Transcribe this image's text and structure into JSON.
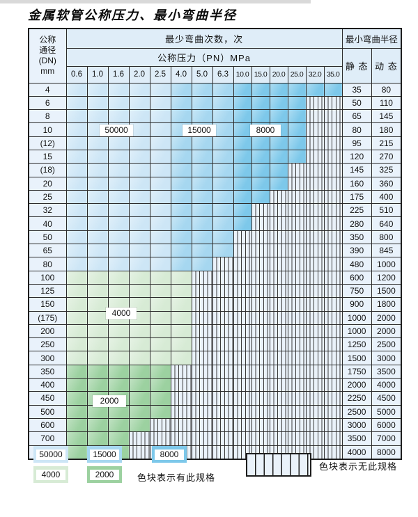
{
  "title": "金属软管公称压力、最小弯曲半径",
  "header": {
    "dn_lines": [
      "公称",
      "通径",
      "(DN)",
      "mm"
    ],
    "cycles": "最少弯曲次数，次",
    "pressure": "公称压力（PN）MPa",
    "pressure_values": [
      "0.6",
      "1.0",
      "1.6",
      "2.0",
      "2.5",
      "4.0",
      "5.0",
      "6.3",
      "10.0",
      "15.0",
      "20.0",
      "25.0",
      "32.0",
      "35.0"
    ],
    "radius": "最小弯曲半径",
    "static": "静 态",
    "dynamic": "动 态"
  },
  "overlay_labels": {
    "l50000": "50000",
    "l15000": "15000",
    "l8000": "8000",
    "l4000": "4000",
    "l2000": "2000"
  },
  "colors": {
    "c50000": "#cde6f6",
    "c15000": "#a6d7f0",
    "c8000": "#7dc8ea",
    "c4000": "#d7ebd5",
    "c2000": "#9cd1a0",
    "hatch_bg": "#eaf2fa",
    "header_bg": "#dfedf8",
    "label_col_bg": "#e9f2fb"
  },
  "rows": [
    {
      "dn": "4",
      "group": "blue",
      "colored": 14,
      "static": "35",
      "dynamic": "80"
    },
    {
      "dn": "6",
      "group": "blue",
      "colored": 12,
      "static": "50",
      "dynamic": "110"
    },
    {
      "dn": "8",
      "group": "blue",
      "colored": 12,
      "static": "65",
      "dynamic": "145"
    },
    {
      "dn": "10",
      "group": "blue",
      "colored": 12,
      "static": "80",
      "dynamic": "180"
    },
    {
      "dn": "(12)",
      "group": "blue",
      "colored": 12,
      "static": "95",
      "dynamic": "215"
    },
    {
      "dn": "15",
      "group": "blue",
      "colored": 12,
      "static": "120",
      "dynamic": "270"
    },
    {
      "dn": "(18)",
      "group": "blue",
      "colored": 11,
      "static": "145",
      "dynamic": "325"
    },
    {
      "dn": "20",
      "group": "blue",
      "colored": 11,
      "static": "160",
      "dynamic": "360"
    },
    {
      "dn": "25",
      "group": "blue",
      "colored": 10,
      "static": "175",
      "dynamic": "400"
    },
    {
      "dn": "32",
      "group": "blue",
      "colored": 9,
      "static": "225",
      "dynamic": "510"
    },
    {
      "dn": "40",
      "group": "blue",
      "colored": 9,
      "static": "280",
      "dynamic": "640"
    },
    {
      "dn": "50",
      "group": "blue",
      "colored": 8,
      "static": "350",
      "dynamic": "800"
    },
    {
      "dn": "65",
      "group": "blue",
      "colored": 8,
      "static": "390",
      "dynamic": "845"
    },
    {
      "dn": "80",
      "group": "blue",
      "colored": 7,
      "static": "480",
      "dynamic": "1000"
    },
    {
      "dn": "100",
      "group": "g4000",
      "colored": 6,
      "static": "600",
      "dynamic": "1200"
    },
    {
      "dn": "125",
      "group": "g4000",
      "colored": 6,
      "static": "750",
      "dynamic": "1500"
    },
    {
      "dn": "150",
      "group": "g4000",
      "colored": 6,
      "static": "900",
      "dynamic": "1800"
    },
    {
      "dn": "(175)",
      "group": "g4000",
      "colored": 6,
      "static": "1000",
      "dynamic": "2000"
    },
    {
      "dn": "200",
      "group": "g4000",
      "colored": 6,
      "static": "1000",
      "dynamic": "2000"
    },
    {
      "dn": "250",
      "group": "g4000",
      "colored": 6,
      "static": "1250",
      "dynamic": "2500"
    },
    {
      "dn": "300",
      "group": "g4000",
      "colored": 6,
      "static": "1500",
      "dynamic": "3000"
    },
    {
      "dn": "350",
      "group": "g2000",
      "colored": 5,
      "static": "1750",
      "dynamic": "3500"
    },
    {
      "dn": "400",
      "group": "g2000",
      "colored": 5,
      "static": "2000",
      "dynamic": "4000"
    },
    {
      "dn": "450",
      "group": "g2000",
      "colored": 5,
      "static": "2250",
      "dynamic": "4500"
    },
    {
      "dn": "500",
      "group": "g2000",
      "colored": 5,
      "static": "2500",
      "dynamic": "5000"
    },
    {
      "dn": "600",
      "group": "g2000",
      "colored": 4,
      "static": "3000",
      "dynamic": "6000"
    },
    {
      "dn": "700",
      "group": "g2000",
      "colored": 3,
      "static": "3500",
      "dynamic": "7000"
    },
    {
      "dn": "800",
      "group": "g2000",
      "colored": 3,
      "static": "4000",
      "dynamic": "8000"
    }
  ],
  "legend": {
    "items": [
      {
        "value": "50000"
      },
      {
        "value": "15000"
      },
      {
        "value": "8000"
      },
      {
        "value": "4000"
      },
      {
        "value": "2000"
      }
    ],
    "has_spec_text": "色块表示有此规格",
    "no_spec_text": "色块表示无此规格"
  }
}
